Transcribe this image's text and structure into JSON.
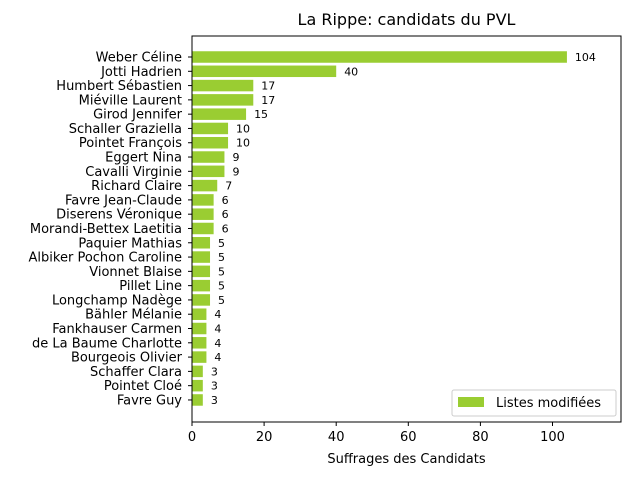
{
  "chart_data": {
    "type": "bar",
    "orientation": "horizontal",
    "title": "La Rippe: candidats du PVL",
    "xlabel": "Suffrages des Candidats",
    "ylabel": "",
    "xlim": [
      0,
      119
    ],
    "xticks": [
      0,
      20,
      40,
      60,
      80,
      100
    ],
    "grid": false,
    "legend_position": "bottom-right",
    "bar_color": "#9acd32",
    "categories": [
      "Weber Céline",
      "Jotti Hadrien",
      "Humbert Sébastien",
      "Miéville Laurent",
      "Girod Jennifer",
      "Schaller Graziella",
      "Pointet François",
      "Eggert Nina",
      "Cavalli Virginie",
      "Richard Claire",
      "Favre Jean-Claude",
      "Diserens Véronique",
      "Morandi-Bettex Laetitia",
      "Paquier Mathias",
      "Albiker Pochon Caroline",
      "Vionnet Blaise",
      "Pillet Line",
      "Longchamp Nadège",
      "Bähler Mélanie",
      "Fankhauser Carmen",
      "de La Baume Charlotte",
      "Bourgeois Olivier",
      "Schaffer Clara",
      "Pointet Cloé",
      "Favre Guy"
    ],
    "series": [
      {
        "name": "Listes modifiées",
        "values": [
          104,
          40,
          17,
          17,
          15,
          10,
          10,
          9,
          9,
          7,
          6,
          6,
          6,
          5,
          5,
          5,
          5,
          5,
          4,
          4,
          4,
          4,
          3,
          3,
          3
        ]
      }
    ]
  }
}
